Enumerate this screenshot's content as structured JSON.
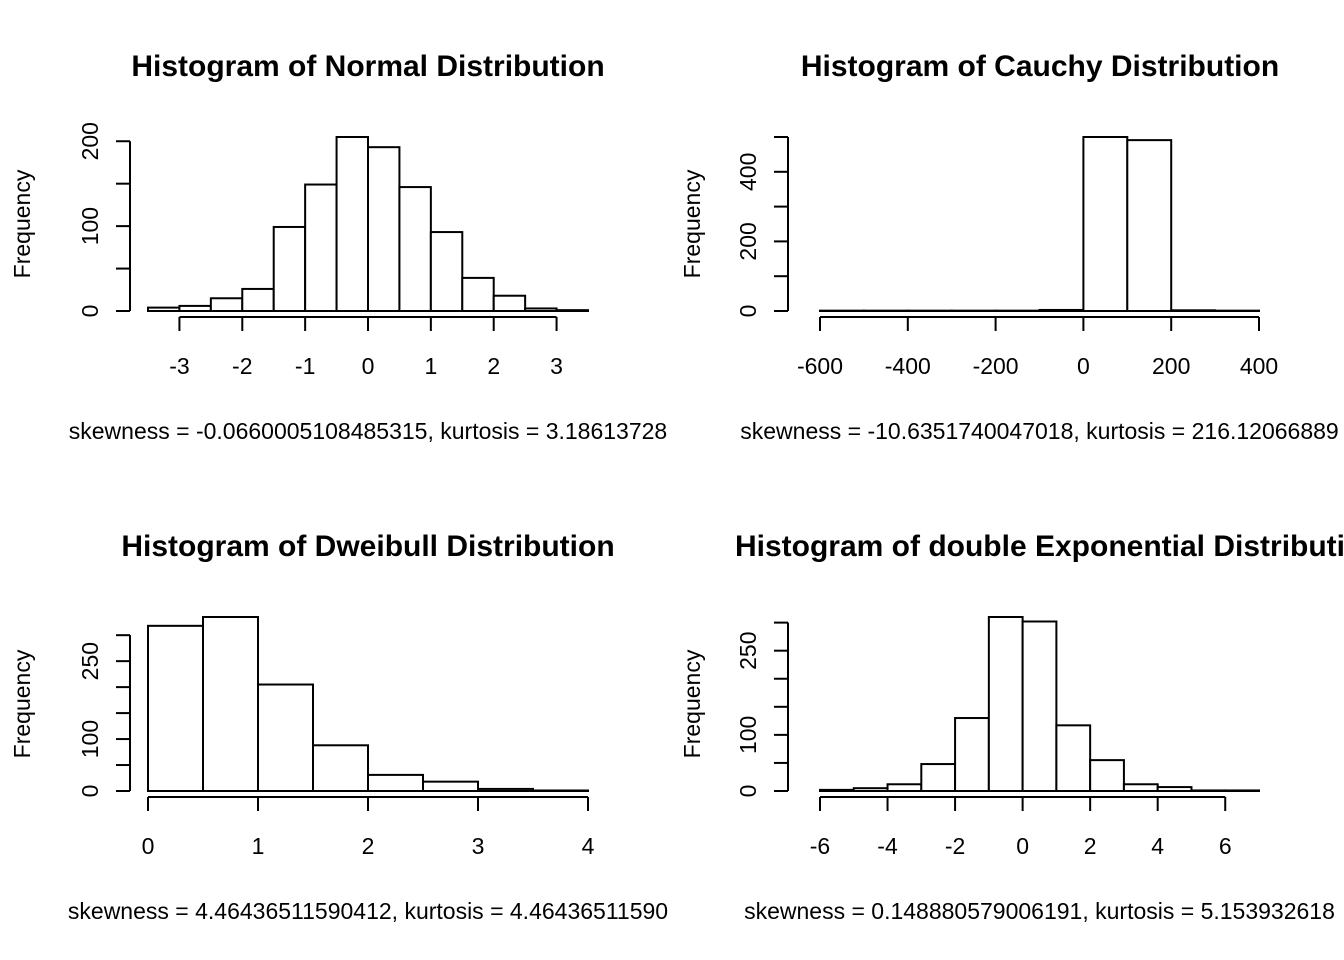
{
  "chart_data": [
    {
      "type": "bar",
      "title": "Histogram of Normal Distribution",
      "xlabel": "skewness = -0.0660005108485315, kurtosis = 3.18613728",
      "ylabel": "Frequency",
      "bin_width": 0.5,
      "bin_start": -3.5,
      "values": [
        4,
        6,
        15,
        26,
        99,
        149,
        205,
        193,
        146,
        93,
        39,
        18,
        3,
        1
      ],
      "xlim": [
        -3.5,
        3.5
      ],
      "ylim": [
        0,
        205
      ],
      "x_ticks": [
        -3,
        -2,
        -1,
        0,
        1,
        2,
        3
      ],
      "x_tick_labels": [
        "-3",
        "-2",
        "-1",
        "0",
        "1",
        "2",
        "3"
      ],
      "y_ticks": [
        0,
        50,
        100,
        150,
        200
      ],
      "y_tick_labels": [
        "0",
        "",
        "100",
        "",
        "200"
      ]
    },
    {
      "type": "bar",
      "title": "Histogram of Cauchy Distribution",
      "xlabel": "skewness = -10.6351740047018, kurtosis = 216.12066889",
      "ylabel": "Frequency",
      "bin_width": 100,
      "bin_start": -600,
      "values": [
        1,
        1,
        1,
        1,
        1,
        3,
        500,
        491,
        2,
        1
      ],
      "xlim": [
        -600,
        400
      ],
      "ylim": [
        0,
        500
      ],
      "x_ticks": [
        -600,
        -400,
        -200,
        0,
        200,
        400
      ],
      "x_tick_labels": [
        "-600",
        "-400",
        "-200",
        "0",
        "200",
        "400"
      ],
      "y_ticks": [
        0,
        100,
        200,
        300,
        400,
        500
      ],
      "y_tick_labels": [
        "0",
        "",
        "200",
        "",
        "400",
        ""
      ]
    },
    {
      "type": "bar",
      "title": "Histogram of Dweibull Distribution",
      "xlabel": "skewness = 4.46436511590412, kurtosis = 4.46436511590",
      "ylabel": "Frequency",
      "bin_width": 0.5,
      "bin_start": 0,
      "values": [
        318,
        335,
        205,
        88,
        31,
        18,
        4,
        1
      ],
      "xlim": [
        0,
        4
      ],
      "ylim": [
        0,
        335
      ],
      "x_ticks": [
        0,
        1,
        2,
        3,
        4
      ],
      "x_tick_labels": [
        "0",
        "1",
        "2",
        "3",
        "4"
      ],
      "y_ticks": [
        0,
        50,
        100,
        150,
        200,
        250,
        300
      ],
      "y_tick_labels": [
        "0",
        "",
        "100",
        "",
        "",
        "250",
        ""
      ]
    },
    {
      "type": "bar",
      "title": "Histogram of double Exponential Distributi",
      "xlabel": "skewness = 0.148880579006191, kurtosis = 5.153932618",
      "ylabel": "Frequency",
      "bin_width": 1,
      "bin_start": -6,
      "values": [
        2,
        5,
        12,
        48,
        130,
        310,
        302,
        117,
        55,
        12,
        7,
        1,
        1
      ],
      "xlim": [
        -6,
        7
      ],
      "ylim": [
        0,
        310
      ],
      "x_ticks": [
        -6,
        -4,
        -2,
        0,
        2,
        4,
        6
      ],
      "x_tick_labels": [
        "-6",
        "-4",
        "-2",
        "0",
        "2",
        "4",
        "6"
      ],
      "y_ticks": [
        0,
        50,
        100,
        150,
        200,
        250,
        300
      ],
      "y_tick_labels": [
        "0",
        "",
        "100",
        "",
        "",
        "250",
        ""
      ]
    }
  ]
}
